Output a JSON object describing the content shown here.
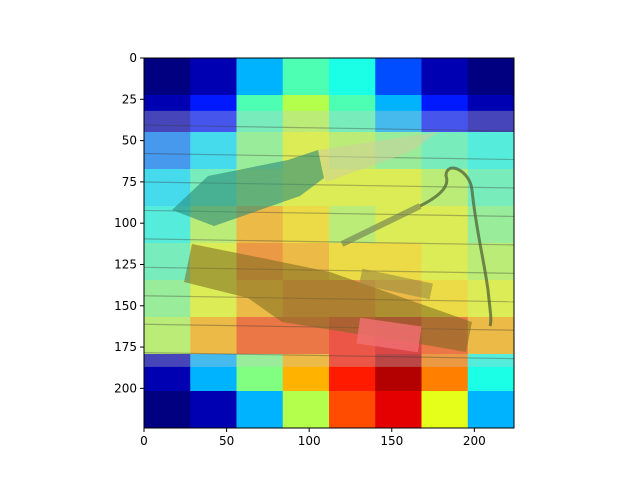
{
  "chart_data": {
    "type": "heatmap",
    "title": "",
    "xlabel": "",
    "ylabel": "",
    "xlim": [
      0,
      224
    ],
    "ylim": [
      224,
      0
    ],
    "x_ticks": [
      0,
      50,
      100,
      150,
      200
    ],
    "y_ticks": [
      0,
      25,
      50,
      75,
      100,
      125,
      150,
      175,
      200
    ],
    "x_tick_labels": [
      "0",
      "50",
      "100",
      "150",
      "200"
    ],
    "y_tick_labels": [
      "0",
      "25",
      "50",
      "75",
      "100",
      "125",
      "150",
      "175",
      "200"
    ],
    "colormap": "jet",
    "overlay": "heatmap over photo of knife, sheath, and fire steel on wooden boards",
    "photo_rows": [
      32,
      187
    ],
    "grid": false,
    "heat_levels": [
      [
        0.0,
        0.05,
        0.3,
        0.45,
        0.4,
        0.2,
        0.05,
        0.0
      ],
      [
        0.05,
        0.15,
        0.45,
        0.55,
        0.45,
        0.3,
        0.15,
        0.05
      ],
      [
        0.25,
        0.35,
        0.5,
        0.6,
        0.55,
        0.5,
        0.45,
        0.4
      ],
      [
        0.35,
        0.45,
        0.55,
        0.6,
        0.6,
        0.6,
        0.55,
        0.45
      ],
      [
        0.4,
        0.55,
        0.7,
        0.65,
        0.55,
        0.6,
        0.6,
        0.5
      ],
      [
        0.45,
        0.6,
        0.75,
        0.7,
        0.65,
        0.65,
        0.6,
        0.55
      ],
      [
        0.5,
        0.6,
        0.7,
        0.75,
        0.75,
        0.7,
        0.65,
        0.6
      ],
      [
        0.55,
        0.7,
        0.8,
        0.8,
        0.85,
        0.9,
        0.8,
        0.7
      ],
      [
        0.05,
        0.3,
        0.5,
        0.7,
        0.85,
        0.95,
        0.75,
        0.4
      ],
      [
        0.0,
        0.05,
        0.3,
        0.55,
        0.8,
        0.9,
        0.6,
        0.3
      ]
    ]
  }
}
